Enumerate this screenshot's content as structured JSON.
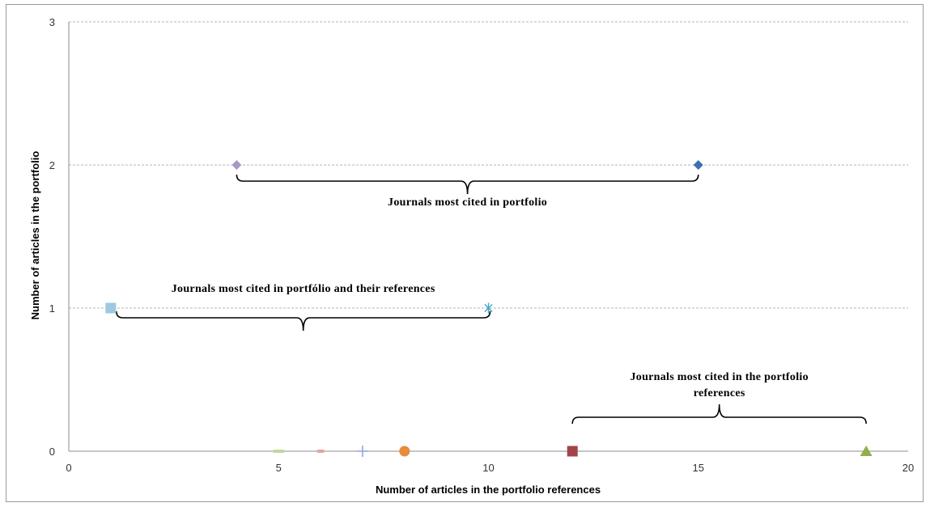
{
  "chart_data": {
    "type": "scatter",
    "xlabel": "Number of articles in the portfolio references",
    "ylabel": "Number of articles in the portfolio",
    "xlim": [
      0,
      20
    ],
    "ylim": [
      0,
      3
    ],
    "xticks": [
      0,
      5,
      10,
      15,
      20
    ],
    "yticks": [
      0,
      1,
      2,
      3
    ],
    "grid": "horizontal dashed",
    "points": [
      {
        "x": 4,
        "y": 2,
        "marker": "diamond",
        "color": "#A899C4"
      },
      {
        "x": 15,
        "y": 2,
        "marker": "diamond",
        "color": "#3D6FAF"
      },
      {
        "x": 1,
        "y": 1,
        "marker": "square",
        "color": "#9CC9E0"
      },
      {
        "x": 10,
        "y": 1,
        "marker": "asterisk",
        "color": "#3FA9C7"
      },
      {
        "x": 5,
        "y": 0,
        "marker": "dash",
        "color": "#C3D69B"
      },
      {
        "x": 6,
        "y": 0,
        "marker": "dash",
        "color": "#E6A3A0"
      },
      {
        "x": 7,
        "y": 0,
        "marker": "plus",
        "color": "#8FA8DC"
      },
      {
        "x": 8,
        "y": 0,
        "marker": "circle",
        "color": "#E88B3A"
      },
      {
        "x": 12,
        "y": 0,
        "marker": "square",
        "color": "#A3434B"
      },
      {
        "x": 19,
        "y": 0,
        "marker": "triangle",
        "color": "#8FB04A"
      }
    ],
    "annotations": [
      {
        "text": "Journals most cited in portfolio",
        "from": [
          4,
          2
        ],
        "to": [
          15,
          2
        ],
        "side": "below"
      },
      {
        "text": "Journals most cited in portfólio and their references",
        "from": [
          1,
          1
        ],
        "to": [
          10,
          1
        ],
        "side": "below"
      },
      {
        "text": "Journals most cited in the portfolio references",
        "from": [
          12,
          0
        ],
        "to": [
          19,
          0
        ],
        "side": "above"
      }
    ]
  }
}
